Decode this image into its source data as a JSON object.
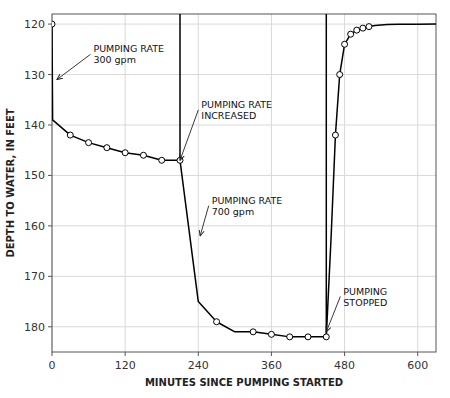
{
  "chart_data": {
    "type": "line",
    "xlabel": "MINUTES SINCE PUMPING STARTED",
    "ylabel": "DEPTH TO WATER, IN FEET",
    "xlim": [
      0,
      630
    ],
    "ylim": [
      185,
      118
    ],
    "xticks": [
      0,
      120,
      240,
      360,
      480,
      600
    ],
    "yticks": [
      120,
      130,
      140,
      150,
      160,
      170,
      180
    ],
    "grid": true,
    "series": [
      {
        "color": "#000000",
        "x": [
          0,
          1,
          30,
          60,
          90,
          120,
          150,
          180,
          210
        ],
        "values": [
          120,
          139,
          142,
          143.5,
          144.5,
          145.5,
          146,
          147,
          147
        ]
      },
      {
        "color": "#000000",
        "x": [
          210,
          240,
          270,
          300,
          330,
          360,
          390,
          420,
          450
        ],
        "values": [
          147,
          175,
          179,
          181,
          181,
          181.5,
          182,
          182,
          182
        ]
      },
      {
        "color": "#000000",
        "x": [
          450,
          458,
          465,
          472,
          480,
          490,
          500,
          510,
          520,
          530,
          550,
          570,
          600,
          630
        ],
        "values": [
          182,
          162,
          142,
          130,
          124,
          122,
          121.2,
          120.8,
          120.5,
          120.3,
          120.1,
          120.03,
          120.01,
          120
        ]
      },
      {
        "color": "#000000",
        "x": [
          210,
          210
        ],
        "values": [
          118,
          147
        ]
      },
      {
        "color": "#000000",
        "x": [
          450,
          450
        ],
        "values": [
          118,
          182
        ]
      },
      {
        "type": "scatter",
        "marker": "circle",
        "color": "#000000",
        "x": [
          0,
          30,
          60,
          90,
          120,
          150,
          180,
          210,
          270,
          330,
          360,
          390,
          420,
          450,
          465,
          472,
          480,
          490,
          500,
          510,
          520
        ],
        "values": [
          120,
          142,
          143.5,
          144.5,
          145.5,
          146,
          147,
          147,
          179,
          181,
          181.5,
          182,
          182,
          182,
          142,
          130,
          124,
          122,
          121.2,
          120.8,
          120.5
        ]
      }
    ],
    "annotations": [
      {
        "text": "PUMPING RATE\n300 gpm",
        "x": 8,
        "y": 131,
        "text_x": 68,
        "text_y": 126
      },
      {
        "text": "PUMPING RATE\nINCREASED",
        "x": 210,
        "y": 147,
        "text_x": 245,
        "text_y": 137
      },
      {
        "text": "PUMPING RATE\n700 gpm",
        "x": 243,
        "y": 162,
        "text_x": 262,
        "text_y": 156
      },
      {
        "text": "PUMPING\nSTOPPED",
        "x": 450,
        "y": 181,
        "text_x": 478,
        "text_y": 174
      }
    ]
  }
}
